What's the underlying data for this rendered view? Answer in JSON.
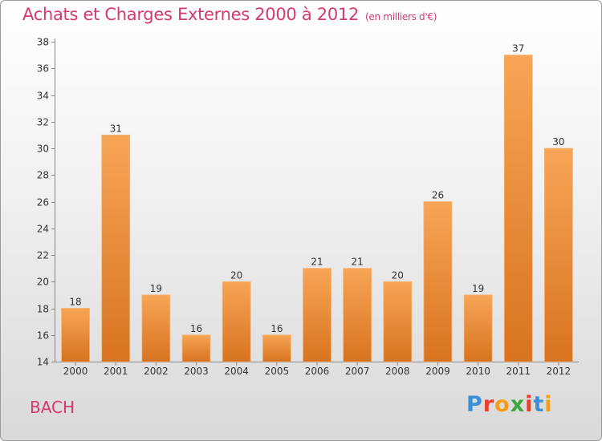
{
  "header": {
    "title": "Achats et Charges Externes 2000 à 2012",
    "subtitle": "(en milliers d'€)"
  },
  "footer": {
    "commune": "BACH",
    "logo_text": "Proxiti",
    "logo_colors": [
      "#3b8fd9",
      "#e8402f",
      "#f59c1a",
      "#3ca83a",
      "#e8402f",
      "#3b8fd9",
      "#f59c1a"
    ]
  },
  "colors": {
    "bar_light": "#f7a556",
    "bar_dark": "#d8731f",
    "title": "#d63a6d"
  },
  "chart_data": {
    "type": "bar",
    "title": "Achats et Charges Externes 2000 à 2012",
    "subtitle": "(en milliers d'€)",
    "categories": [
      "2000",
      "2001",
      "2002",
      "2003",
      "2004",
      "2005",
      "2006",
      "2007",
      "2008",
      "2009",
      "2010",
      "2011",
      "2012"
    ],
    "values": [
      18,
      31,
      19,
      16,
      20,
      16,
      21,
      21,
      20,
      26,
      19,
      37,
      30
    ],
    "ylim": [
      14,
      38
    ],
    "yticks": [
      14,
      16,
      18,
      20,
      22,
      24,
      26,
      28,
      30,
      32,
      34,
      36,
      38
    ],
    "grid": false,
    "xlabel": "",
    "ylabel": ""
  }
}
